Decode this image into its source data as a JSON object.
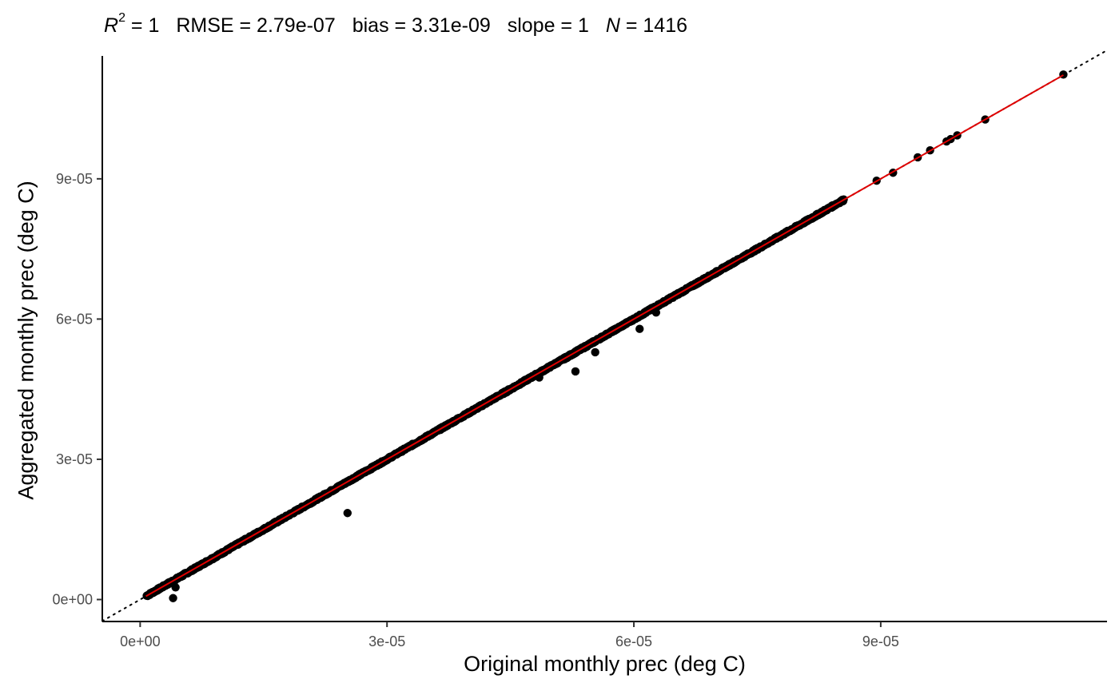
{
  "chart_data": {
    "type": "scatter",
    "title_parts": {
      "r2_symbol": "R",
      "r2_sup": "2",
      "r2_value": "= 1",
      "rmse": "RMSE = 2.79e-07",
      "bias": "bias = 3.31e-09",
      "slope": "slope = 1",
      "n_symbol": "N",
      "n_value": "= 1416"
    },
    "xlabel": "Original monthly prec (deg C)",
    "ylabel": "Aggregated monthly prec (deg C)",
    "xlim": [
      -4.6e-06,
      0.0001175
    ],
    "ylim": [
      -4.7e-06,
      0.000118
    ],
    "x_ticks": [
      {
        "value": 0,
        "label": "0e+00"
      },
      {
        "value": 3e-05,
        "label": "3e-05"
      },
      {
        "value": 6e-05,
        "label": "6e-05"
      },
      {
        "value": 9e-05,
        "label": "9e-05"
      }
    ],
    "y_ticks": [
      {
        "value": 0,
        "label": "0e+00"
      },
      {
        "value": 3e-05,
        "label": "3e-05"
      },
      {
        "value": 6e-05,
        "label": "6e-05"
      },
      {
        "value": 9e-05,
        "label": "9e-05"
      }
    ],
    "grid": false,
    "one_to_one_line": {
      "style": "dotted",
      "color": "#000000"
    },
    "fit_line": {
      "color": "#e00000",
      "x_range": [
        7e-07,
        0.0001122
      ]
    },
    "dense_band": {
      "x_start": 8e-07,
      "x_end": 8.55e-05,
      "count": 1380
    },
    "outliers": [
      {
        "x": 4e-06,
        "y": 3e-07
      },
      {
        "x": 4.3e-06,
        "y": 2.6e-06
      },
      {
        "x": 2.52e-05,
        "y": 1.85e-05
      },
      {
        "x": 5.29e-05,
        "y": 4.88e-05
      },
      {
        "x": 5.53e-05,
        "y": 5.29e-05
      },
      {
        "x": 6.07e-05,
        "y": 5.79e-05
      },
      {
        "x": 6.27e-05,
        "y": 6.14e-05
      },
      {
        "x": 4.85e-05,
        "y": 4.75e-05
      },
      {
        "x": 7e-05,
        "y": 6.98e-05
      },
      {
        "x": 8.95e-05,
        "y": 8.96e-05
      },
      {
        "x": 9.15e-05,
        "y": 9.13e-05
      },
      {
        "x": 9.45e-05,
        "y": 9.46e-05
      },
      {
        "x": 9.6e-05,
        "y": 9.61e-05
      },
      {
        "x": 9.8e-05,
        "y": 9.8e-05
      },
      {
        "x": 9.85e-05,
        "y": 9.85e-05
      },
      {
        "x": 9.93e-05,
        "y": 9.93e-05
      },
      {
        "x": 0.0001027,
        "y": 0.0001027
      },
      {
        "x": 0.0001122,
        "y": 0.0001123
      }
    ]
  },
  "colors": {
    "point": "#000000",
    "fit": "#e00000",
    "axis": "#000000",
    "tick_text": "#4d4d4d"
  }
}
